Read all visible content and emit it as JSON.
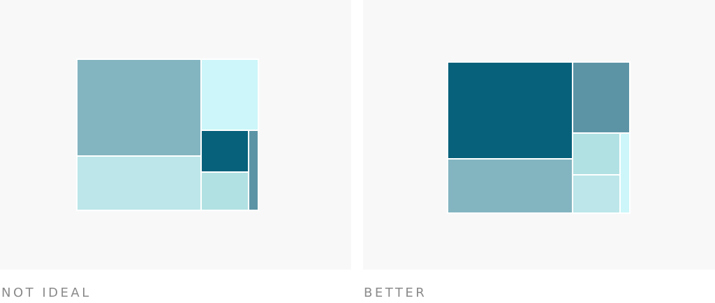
{
  "captions": {
    "left": "NOT IDEAL",
    "right": "BETTER"
  },
  "colors": {
    "panel_background": "#f8f8f8",
    "caption_text": "#8a8a8a",
    "tile_border": "#ffffff",
    "shades": [
      "#07617b",
      "#5c94a6",
      "#83b5c0",
      "#b1e1e3",
      "#bce6e9",
      "#ccf6f9"
    ]
  },
  "treemaps": {
    "not_ideal": [
      "#83b5c0",
      "#bce6e9",
      "#ccf6f9",
      "#07617b",
      "#b1e1e3",
      "#5c94a6"
    ],
    "better": [
      "#07617b",
      "#83b5c0",
      "#5c94a6",
      "#b1e1e3",
      "#bce6e9",
      "#ccf6f9"
    ]
  }
}
